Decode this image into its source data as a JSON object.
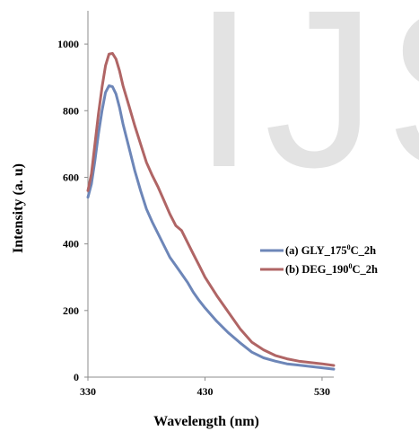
{
  "watermark": {
    "text": "IJS"
  },
  "chart_data": {
    "type": "line",
    "xlabel": "Wavelength (nm)",
    "ylabel": "Intensity (a. u)",
    "xlim": [
      330,
      540
    ],
    "ylim": [
      0,
      1100
    ],
    "xticks": [
      "330",
      "430",
      "530"
    ],
    "yticks": [
      "0",
      "200",
      "400",
      "600",
      "800",
      "1000"
    ],
    "grid": false,
    "legend_position": "right",
    "series": [
      {
        "name": "(a) GLY_175⁰C_2h",
        "legend_prefix": "(a) GLY_175",
        "legend_sup": "0",
        "legend_suffix": "C_2h",
        "color": "#6d86b8",
        "x": [
          330,
          333,
          336,
          339,
          342,
          345,
          348,
          351,
          354,
          357,
          360,
          365,
          370,
          375,
          380,
          385,
          390,
          395,
          400,
          405,
          410,
          415,
          420,
          425,
          430,
          440,
          450,
          460,
          470,
          480,
          490,
          500,
          510,
          520,
          530,
          540
        ],
        "y": [
          540,
          580,
          650,
          730,
          800,
          855,
          875,
          872,
          850,
          810,
          760,
          690,
          620,
          560,
          505,
          465,
          430,
          395,
          360,
          335,
          310,
          285,
          255,
          230,
          208,
          168,
          133,
          103,
          75,
          58,
          48,
          40,
          36,
          32,
          28,
          24
        ]
      },
      {
        "name": "(b) DEG_190⁰C_2h",
        "legend_prefix": "(b) DEG_190",
        "legend_sup": "0",
        "legend_suffix": "C_2h",
        "color": "#b06565",
        "x": [
          330,
          333,
          336,
          339,
          342,
          345,
          348,
          351,
          354,
          357,
          360,
          365,
          370,
          375,
          380,
          385,
          390,
          395,
          400,
          405,
          410,
          415,
          420,
          425,
          430,
          440,
          450,
          460,
          470,
          480,
          490,
          500,
          510,
          520,
          530,
          540
        ],
        "y": [
          560,
          610,
          700,
          790,
          870,
          935,
          970,
          972,
          955,
          920,
          875,
          815,
          755,
          700,
          645,
          605,
          570,
          530,
          490,
          455,
          440,
          405,
          370,
          335,
          300,
          245,
          195,
          145,
          105,
          82,
          65,
          55,
          48,
          44,
          40,
          35
        ]
      }
    ]
  }
}
